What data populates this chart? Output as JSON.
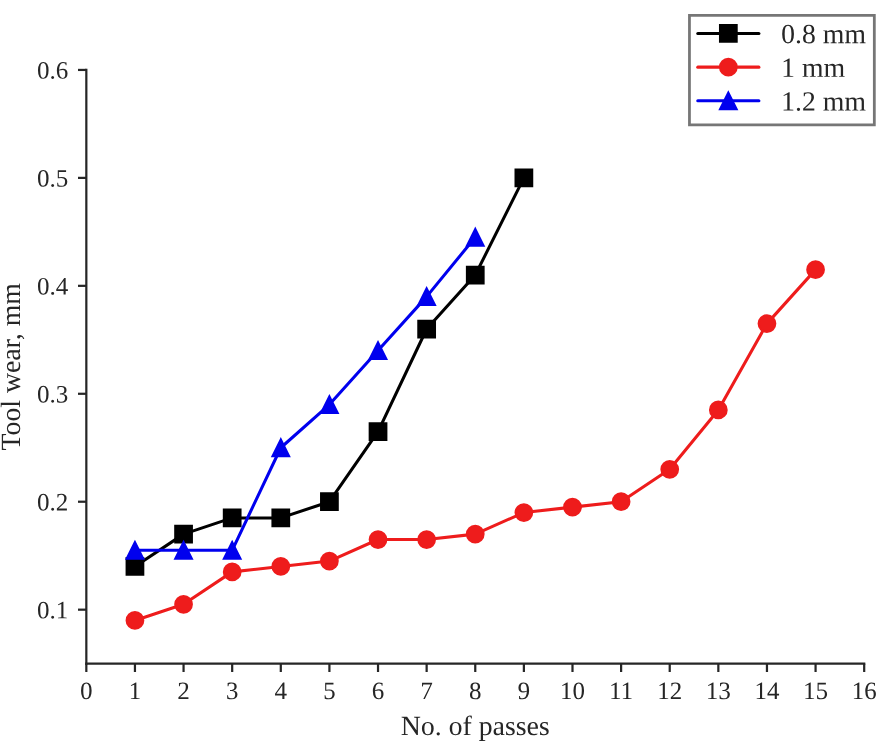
{
  "chart_data": {
    "type": "line",
    "xlabel": "No. of passes",
    "ylabel": "Tool wear, mm",
    "xlim": [
      0,
      16
    ],
    "xticks": [
      0,
      1,
      2,
      3,
      4,
      5,
      6,
      7,
      8,
      9,
      10,
      11,
      12,
      13,
      14,
      15,
      16
    ],
    "ylim": [
      0.05,
      0.6
    ],
    "yticks": [
      0.1,
      0.2,
      0.3,
      0.4,
      0.5,
      0.6
    ],
    "legend": "top right",
    "grid": false,
    "line_style": "solid",
    "series": [
      {
        "name": "0.8 mm",
        "color": "#000000",
        "marker": "square",
        "x": [
          1,
          2,
          3,
          4,
          5,
          6,
          7,
          8,
          9
        ],
        "values": [
          0.14,
          0.17,
          0.185,
          0.185,
          0.2,
          0.265,
          0.36,
          0.41,
          0.5
        ]
      },
      {
        "name": "1 mm",
        "color": "#ee1c1c",
        "marker": "circle",
        "x": [
          1,
          2,
          3,
          4,
          5,
          6,
          7,
          8,
          9,
          10,
          11,
          12,
          13,
          14,
          15
        ],
        "values": [
          0.09,
          0.105,
          0.135,
          0.14,
          0.145,
          0.165,
          0.165,
          0.17,
          0.19,
          0.195,
          0.2,
          0.23,
          0.285,
          0.365,
          0.415
        ]
      },
      {
        "name": "1.2 mm",
        "color": "#0000ee",
        "marker": "triangle",
        "x": [
          1,
          2,
          3,
          4,
          5,
          6,
          7,
          8
        ],
        "values": [
          0.155,
          0.155,
          0.155,
          0.25,
          0.29,
          0.34,
          0.39,
          0.445
        ]
      }
    ]
  }
}
